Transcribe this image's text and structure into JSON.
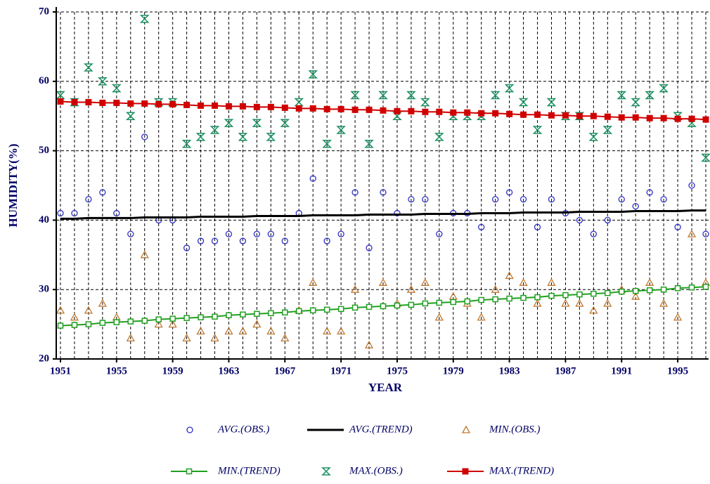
{
  "chart_data": {
    "type": "line",
    "x_label": "YEAR",
    "y_label": "HUMIDITY(%)",
    "x": [
      1951,
      1952,
      1953,
      1954,
      1955,
      1956,
      1957,
      1958,
      1959,
      1960,
      1961,
      1962,
      1963,
      1964,
      1965,
      1966,
      1967,
      1968,
      1969,
      1970,
      1971,
      1972,
      1973,
      1974,
      1975,
      1976,
      1977,
      1978,
      1979,
      1980,
      1981,
      1982,
      1983,
      1984,
      1985,
      1986,
      1987,
      1988,
      1989,
      1990,
      1991,
      1992,
      1993,
      1994,
      1995,
      1996,
      1997
    ],
    "xlim": [
      1950.7,
      1997.2
    ],
    "xticks": [
      1951,
      1955,
      1959,
      1963,
      1967,
      1971,
      1975,
      1979,
      1983,
      1987,
      1991,
      1995
    ],
    "ylim": [
      20,
      70
    ],
    "yticks": [
      20,
      30,
      40,
      50,
      60,
      70
    ],
    "grid": true,
    "series": [
      {
        "name": "AVG.(OBS.)",
        "color": "#3030c8",
        "style": "markers",
        "marker": "circle",
        "values": [
          41,
          41,
          43,
          44,
          41,
          38,
          52,
          40,
          40,
          36,
          37,
          37,
          38,
          37,
          38,
          38,
          37,
          41,
          46,
          37,
          38,
          44,
          36,
          44,
          41,
          43,
          43,
          38,
          41,
          41,
          39,
          43,
          44,
          43,
          39,
          43,
          41,
          40,
          38,
          40,
          43,
          42,
          44,
          43,
          39,
          45,
          38
        ]
      },
      {
        "name": "AVG.(TREND)",
        "color": "#000000",
        "style": "line",
        "marker": "none",
        "values": [
          40.2,
          40.2,
          40.3,
          40.3,
          40.3,
          40.3,
          40.4,
          40.4,
          40.4,
          40.4,
          40.5,
          40.5,
          40.5,
          40.5,
          40.6,
          40.6,
          40.6,
          40.6,
          40.7,
          40.7,
          40.7,
          40.7,
          40.8,
          40.8,
          40.8,
          40.8,
          40.9,
          40.9,
          40.9,
          40.9,
          41.0,
          41.0,
          41.0,
          41.1,
          41.1,
          41.1,
          41.1,
          41.2,
          41.2,
          41.2,
          41.2,
          41.3,
          41.3,
          41.3,
          41.3,
          41.4,
          41.4
        ]
      },
      {
        "name": "MIN.(OBS.)",
        "color": "#c07830",
        "style": "markers",
        "marker": "triangle",
        "values": [
          27,
          26,
          27,
          28,
          26,
          23,
          35,
          25,
          25,
          23,
          24,
          23,
          24,
          24,
          25,
          24,
          23,
          27,
          31,
          24,
          24,
          30,
          22,
          31,
          28,
          30,
          31,
          26,
          29,
          28,
          26,
          30,
          32,
          31,
          28,
          31,
          28,
          28,
          27,
          28,
          30,
          29,
          31,
          28,
          26,
          38,
          31
        ]
      },
      {
        "name": "MIN.(TREND)",
        "color": "#20a020",
        "style": "line+markers",
        "marker": "open-square",
        "values": [
          24.8,
          24.9,
          25.0,
          25.2,
          25.3,
          25.4,
          25.5,
          25.7,
          25.8,
          25.9,
          26.0,
          26.1,
          26.3,
          26.4,
          26.5,
          26.6,
          26.7,
          26.9,
          27.0,
          27.1,
          27.2,
          27.4,
          27.5,
          27.6,
          27.7,
          27.8,
          28.0,
          28.1,
          28.2,
          28.3,
          28.5,
          28.6,
          28.7,
          28.8,
          28.9,
          29.1,
          29.2,
          29.3,
          29.4,
          29.5,
          29.7,
          29.8,
          29.9,
          30.0,
          30.2,
          30.3,
          30.4
        ]
      },
      {
        "name": "MAX.(OBS.)",
        "color": "#1a9060",
        "style": "markers",
        "marker": "hourglass",
        "values": [
          58,
          57,
          62,
          60,
          59,
          55,
          69,
          57,
          57,
          51,
          52,
          53,
          54,
          52,
          54,
          52,
          54,
          57,
          61,
          51,
          53,
          58,
          51,
          58,
          55,
          58,
          57,
          52,
          55,
          55,
          55,
          58,
          59,
          57,
          53,
          57,
          55,
          55,
          52,
          53,
          58,
          57,
          58,
          59,
          55,
          54,
          49
        ]
      },
      {
        "name": "MAX.(TREND)",
        "color": "#d00000",
        "style": "line+markers",
        "marker": "filled-square",
        "values": [
          57.1,
          57.0,
          57.0,
          56.9,
          56.9,
          56.8,
          56.8,
          56.7,
          56.7,
          56.6,
          56.5,
          56.5,
          56.4,
          56.4,
          56.3,
          56.3,
          56.2,
          56.1,
          56.1,
          56.0,
          56.0,
          55.9,
          55.9,
          55.8,
          55.7,
          55.7,
          55.6,
          55.6,
          55.5,
          55.5,
          55.4,
          55.4,
          55.3,
          55.2,
          55.2,
          55.1,
          55.1,
          55.0,
          55.0,
          54.9,
          54.8,
          54.8,
          54.7,
          54.7,
          54.6,
          54.6,
          54.5
        ]
      }
    ]
  }
}
